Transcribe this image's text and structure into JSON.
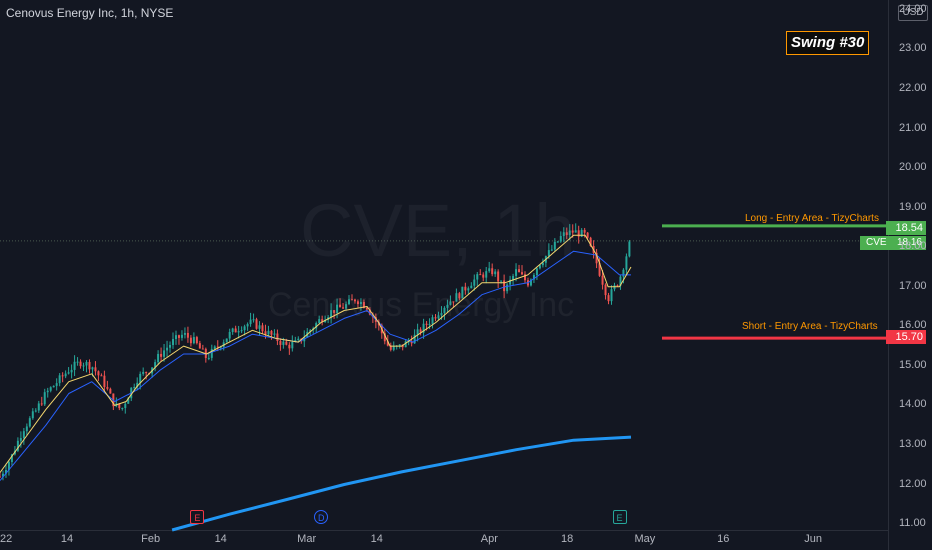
{
  "header": {
    "title": "Cenovus Energy Inc, 1h, NYSE",
    "currency": "USD"
  },
  "badge": {
    "label": "Swing #30"
  },
  "watermark": {
    "symbol": "CVE, 1h",
    "name": "Cenovus Energy Inc"
  },
  "levels": [
    {
      "label": "Long - Entry Area - TizyCharts",
      "price": "18.54",
      "color": "#4caf50"
    },
    {
      "label": "Short - Entry Area - TizyCharts",
      "price": "15.70",
      "color": "#f23645"
    }
  ],
  "last_price": {
    "symbol": "CVE",
    "price": "18.16",
    "color": "#4caf50"
  },
  "events": [
    {
      "letter": "E",
      "color": "#f23645",
      "x": 8.6
    },
    {
      "letter": "D",
      "color": "#2962ff",
      "x": 14.0
    },
    {
      "letter": "E",
      "color": "#26a69a",
      "x": 27.0
    }
  ],
  "chart_data": {
    "type": "candlestick",
    "x_axis": {
      "ticks": [
        {
          "label": "22",
          "day": 0
        },
        {
          "label": "14",
          "day": 3
        },
        {
          "label": "Feb",
          "day": 6.5
        },
        {
          "label": "14",
          "day": 9.7
        },
        {
          "label": "Mar",
          "day": 13.3
        },
        {
          "label": "14",
          "day": 16.5
        },
        {
          "label": "Apr",
          "day": 21.3
        },
        {
          "label": "18",
          "day": 24.8
        },
        {
          "label": "May",
          "day": 28.0
        },
        {
          "label": "16",
          "day": 31.6
        },
        {
          "label": "Jun",
          "day": 35.4
        }
      ],
      "range": [
        0,
        38.7
      ]
    },
    "y_axis": {
      "range": [
        10.85,
        24.25
      ],
      "ticks": [
        11,
        12,
        13,
        14,
        15,
        16,
        17,
        18,
        19,
        20,
        21,
        22,
        23,
        24
      ]
    },
    "price_path": [
      [
        0,
        12.2
      ],
      [
        0.5,
        12.7
      ],
      [
        1,
        13.4
      ],
      [
        1.5,
        13.8
      ],
      [
        2,
        14.3
      ],
      [
        2.5,
        14.6
      ],
      [
        3,
        14.9
      ],
      [
        3.5,
        15.1
      ],
      [
        4,
        15.0
      ],
      [
        4.5,
        14.6
      ],
      [
        5,
        14.0
      ],
      [
        5.3,
        13.9
      ],
      [
        5.7,
        14.4
      ],
      [
        6,
        14.7
      ],
      [
        6.5,
        14.9
      ],
      [
        7,
        15.3
      ],
      [
        7.5,
        15.6
      ],
      [
        8,
        15.8
      ],
      [
        8.5,
        15.6
      ],
      [
        9,
        15.2
      ],
      [
        9.5,
        15.5
      ],
      [
        10,
        15.8
      ],
      [
        10.5,
        16.0
      ],
      [
        11,
        16.1
      ],
      [
        11.5,
        15.9
      ],
      [
        12,
        15.7
      ],
      [
        12.5,
        15.5
      ],
      [
        13,
        15.6
      ],
      [
        13.5,
        15.9
      ],
      [
        14,
        16.2
      ],
      [
        14.5,
        16.4
      ],
      [
        15,
        16.5
      ],
      [
        15.5,
        16.7
      ],
      [
        16,
        16.5
      ],
      [
        16.5,
        16.0
      ],
      [
        17,
        15.4
      ],
      [
        17.5,
        15.5
      ],
      [
        18,
        15.7
      ],
      [
        18.5,
        16.0
      ],
      [
        19,
        16.3
      ],
      [
        19.5,
        16.6
      ],
      [
        20,
        16.8
      ],
      [
        20.5,
        17.1
      ],
      [
        21,
        17.3
      ],
      [
        21.5,
        17.4
      ],
      [
        22,
        16.9
      ],
      [
        22.5,
        17.4
      ],
      [
        23,
        17.1
      ],
      [
        23.5,
        17.6
      ],
      [
        24,
        17.9
      ],
      [
        24.5,
        18.3
      ],
      [
        25,
        18.4
      ],
      [
        25.5,
        18.3
      ],
      [
        26,
        17.6
      ],
      [
        26.5,
        16.7
      ],
      [
        27,
        17.2
      ],
      [
        27.2,
        17.6
      ],
      [
        27.5,
        18.2
      ]
    ],
    "ema_fast": [
      [
        0,
        12.3
      ],
      [
        1,
        13.1
      ],
      [
        2,
        13.9
      ],
      [
        3,
        14.6
      ],
      [
        4,
        14.8
      ],
      [
        4.5,
        14.4
      ],
      [
        5,
        14.0
      ],
      [
        5.5,
        14.1
      ],
      [
        6,
        14.5
      ],
      [
        7,
        15.1
      ],
      [
        8,
        15.5
      ],
      [
        9,
        15.3
      ],
      [
        10,
        15.6
      ],
      [
        11,
        15.9
      ],
      [
        12,
        15.7
      ],
      [
        13,
        15.6
      ],
      [
        14,
        16.1
      ],
      [
        15,
        16.4
      ],
      [
        16,
        16.5
      ],
      [
        16.5,
        16.1
      ],
      [
        17,
        15.5
      ],
      [
        17.5,
        15.5
      ],
      [
        18,
        15.7
      ],
      [
        19,
        16.1
      ],
      [
        20,
        16.6
      ],
      [
        21,
        17.1
      ],
      [
        22,
        17.1
      ],
      [
        23,
        17.3
      ],
      [
        24,
        17.8
      ],
      [
        25,
        18.3
      ],
      [
        25.5,
        18.3
      ],
      [
        26,
        17.8
      ],
      [
        26.5,
        17.0
      ],
      [
        27,
        17.0
      ],
      [
        27.5,
        17.5
      ]
    ],
    "ema_mid": [
      [
        0,
        12.1
      ],
      [
        1,
        12.8
      ],
      [
        2,
        13.5
      ],
      [
        3,
        14.3
      ],
      [
        4,
        14.6
      ],
      [
        5,
        14.1
      ],
      [
        6,
        14.4
      ],
      [
        7,
        14.9
      ],
      [
        8,
        15.3
      ],
      [
        9,
        15.3
      ],
      [
        10,
        15.5
      ],
      [
        11,
        15.8
      ],
      [
        12,
        15.7
      ],
      [
        13,
        15.6
      ],
      [
        14,
        15.9
      ],
      [
        15,
        16.2
      ],
      [
        16,
        16.4
      ],
      [
        17,
        15.8
      ],
      [
        18,
        15.6
      ],
      [
        19,
        15.9
      ],
      [
        20,
        16.3
      ],
      [
        21,
        16.8
      ],
      [
        22,
        17.0
      ],
      [
        23,
        17.1
      ],
      [
        24,
        17.5
      ],
      [
        25,
        17.9
      ],
      [
        26,
        17.8
      ],
      [
        27,
        17.3
      ],
      [
        27.5,
        17.3
      ]
    ],
    "sma_slow": [
      [
        7.5,
        10.85
      ],
      [
        10,
        11.25
      ],
      [
        12.5,
        11.62
      ],
      [
        15,
        12.0
      ],
      [
        17.5,
        12.32
      ],
      [
        20,
        12.6
      ],
      [
        22.5,
        12.88
      ],
      [
        25,
        13.12
      ],
      [
        27.5,
        13.2
      ]
    ],
    "last_price": 18.16,
    "levels": [
      18.54,
      15.7
    ]
  }
}
